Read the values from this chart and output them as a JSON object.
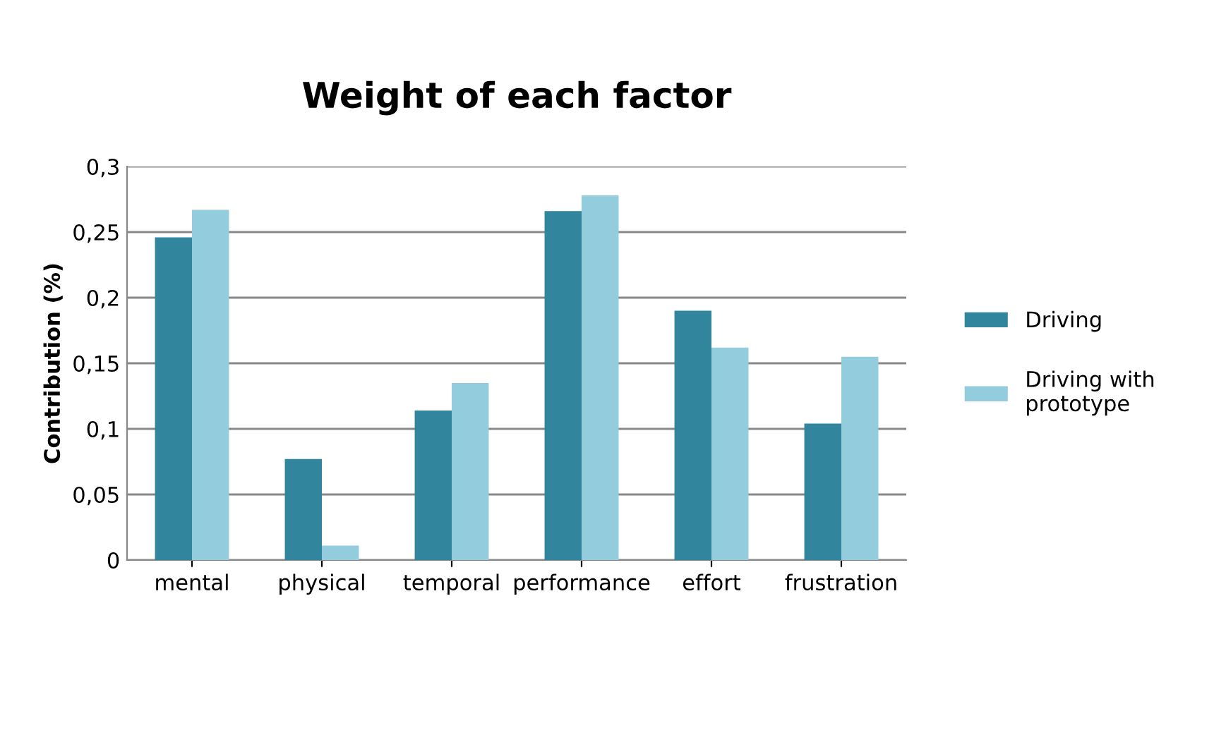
{
  "chart_data": {
    "type": "bar",
    "title": "Weight of each factor",
    "ylabel": "Contribution (%)",
    "categories": [
      "mental",
      "physical",
      "temporal",
      "performance",
      "effort",
      "frustration"
    ],
    "series": [
      {
        "name": "Driving",
        "color": "#31859c",
        "values": [
          0.246,
          0.077,
          0.114,
          0.266,
          0.19,
          0.104
        ]
      },
      {
        "name": "Driving with\nprototype",
        "color": "#93cddd",
        "values": [
          0.267,
          0.011,
          0.135,
          0.278,
          0.162,
          0.155
        ]
      }
    ],
    "ylim": [
      0,
      0.3
    ],
    "yticks": [
      {
        "value": 0,
        "label": "0"
      },
      {
        "value": 0.05,
        "label": "0,05"
      },
      {
        "value": 0.1,
        "label": "0,1"
      },
      {
        "value": 0.15,
        "label": "0,15"
      },
      {
        "value": 0.2,
        "label": "0,2"
      },
      {
        "value": 0.25,
        "label": "0,25"
      },
      {
        "value": 0.3,
        "label": "0,3"
      }
    ],
    "grid": "y",
    "legend": "right"
  }
}
